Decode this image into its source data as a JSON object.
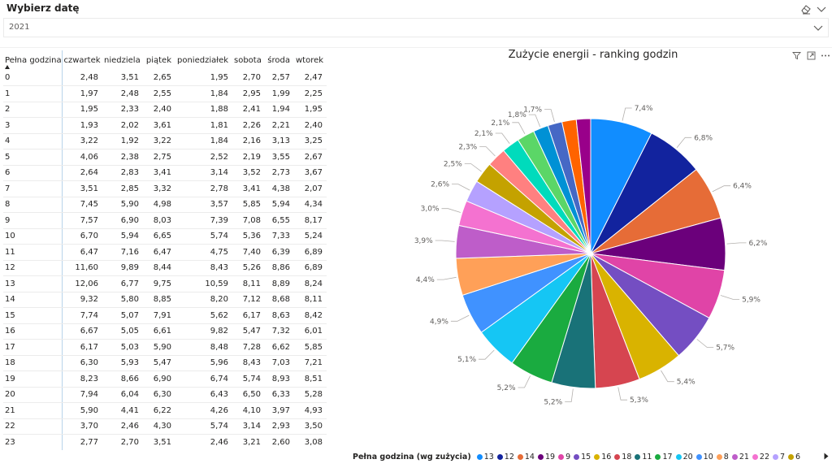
{
  "slicer": {
    "title": "Wybierz datę",
    "value": "2021",
    "clear_icon": "eraser-icon",
    "collapse_icon": "chevron-down-icon",
    "dropdown_icon": "chevron-down-icon"
  },
  "table": {
    "columns": [
      "Pełna godzina",
      "czwartek",
      "niedziela",
      "piątek",
      "poniedziałek",
      "sobota",
      "środa",
      "wtorek"
    ],
    "sort_icon": "sort-up-icon",
    "rows": [
      [
        "0",
        "2,48",
        "3,51",
        "2,65",
        "1,95",
        "2,70",
        "2,57",
        "2,47"
      ],
      [
        "1",
        "1,97",
        "2,48",
        "2,55",
        "1,84",
        "2,95",
        "1,99",
        "2,25"
      ],
      [
        "2",
        "1,95",
        "2,33",
        "2,40",
        "1,88",
        "2,41",
        "1,94",
        "1,95"
      ],
      [
        "3",
        "1,93",
        "2,02",
        "3,61",
        "1,81",
        "2,26",
        "2,21",
        "2,40"
      ],
      [
        "4",
        "3,22",
        "1,92",
        "3,22",
        "1,84",
        "2,16",
        "3,13",
        "3,25"
      ],
      [
        "5",
        "4,06",
        "2,38",
        "2,75",
        "2,52",
        "2,19",
        "3,55",
        "2,67"
      ],
      [
        "6",
        "2,64",
        "2,83",
        "3,41",
        "3,14",
        "3,52",
        "2,73",
        "3,67"
      ],
      [
        "7",
        "3,51",
        "2,85",
        "3,32",
        "2,78",
        "3,41",
        "4,38",
        "2,07"
      ],
      [
        "8",
        "7,45",
        "5,90",
        "4,98",
        "3,57",
        "5,85",
        "5,94",
        "4,34"
      ],
      [
        "9",
        "7,57",
        "6,90",
        "8,03",
        "7,39",
        "7,08",
        "6,55",
        "8,17"
      ],
      [
        "10",
        "6,70",
        "5,94",
        "6,65",
        "5,74",
        "5,36",
        "7,33",
        "5,24"
      ],
      [
        "11",
        "6,47",
        "7,16",
        "6,47",
        "4,75",
        "7,40",
        "6,39",
        "6,89"
      ],
      [
        "12",
        "11,60",
        "9,89",
        "8,44",
        "8,43",
        "5,26",
        "8,86",
        "6,89"
      ],
      [
        "13",
        "12,06",
        "6,77",
        "9,75",
        "10,59",
        "8,11",
        "8,89",
        "8,24"
      ],
      [
        "14",
        "9,32",
        "5,80",
        "8,85",
        "8,20",
        "7,12",
        "8,68",
        "8,11"
      ],
      [
        "15",
        "7,74",
        "5,07",
        "7,91",
        "5,62",
        "6,17",
        "8,63",
        "8,42"
      ],
      [
        "16",
        "6,67",
        "5,05",
        "6,61",
        "9,82",
        "5,47",
        "7,32",
        "6,01"
      ],
      [
        "17",
        "6,17",
        "5,03",
        "5,90",
        "8,48",
        "7,28",
        "6,62",
        "5,85"
      ],
      [
        "18",
        "6,30",
        "5,93",
        "5,47",
        "5,96",
        "8,43",
        "7,03",
        "7,21"
      ],
      [
        "19",
        "8,23",
        "8,66",
        "6,90",
        "6,74",
        "5,74",
        "8,93",
        "8,51"
      ],
      [
        "20",
        "7,94",
        "6,04",
        "6,30",
        "6,43",
        "6,50",
        "6,33",
        "5,28"
      ],
      [
        "21",
        "5,90",
        "4,41",
        "6,22",
        "4,26",
        "4,10",
        "3,97",
        "4,93"
      ],
      [
        "22",
        "3,70",
        "2,46",
        "4,30",
        "5,74",
        "3,14",
        "2,93",
        "3,50"
      ],
      [
        "23",
        "2,77",
        "2,70",
        "3,51",
        "2,46",
        "3,21",
        "2,60",
        "3,08"
      ]
    ]
  },
  "chart_header": {
    "title": "Zużycie energii - ranking godzin",
    "filter_icon": "filter-icon",
    "focus_icon": "focus-mode-icon",
    "more_icon": "more-options-icon"
  },
  "legend": {
    "title": "Pełna godzina (wg zużycia)",
    "next_icon": "caret-right-icon"
  },
  "chart_data": {
    "type": "pie",
    "title": "Zużycie energii - ranking godzin",
    "legend_title": "Pełna godzina (wg zużycia)",
    "legend_placement": "bottom",
    "start_angle_deg": 0,
    "direction": "clockwise",
    "slices": [
      {
        "category": "13",
        "value": 7.4,
        "label": "7,4%",
        "color": "#118DFF"
      },
      {
        "category": "12",
        "value": 6.8,
        "label": "6,8%",
        "color": "#12239E"
      },
      {
        "category": "14",
        "value": 6.4,
        "label": "6,4%",
        "color": "#E66C37"
      },
      {
        "category": "19",
        "value": 6.2,
        "label": "6,2%",
        "color": "#6B007B"
      },
      {
        "category": "9",
        "value": 5.9,
        "label": "5,9%",
        "color": "#E044A7"
      },
      {
        "category": "15",
        "value": 5.7,
        "label": "5,7%",
        "color": "#744EC2"
      },
      {
        "category": "16",
        "value": 5.4,
        "label": "5,4%",
        "color": "#D9B300"
      },
      {
        "category": "18",
        "value": 5.3,
        "label": "5,3%",
        "color": "#D64550"
      },
      {
        "category": "11",
        "value": 5.2,
        "label": "5,2%",
        "color": "#197278"
      },
      {
        "category": "17",
        "value": 5.2,
        "label": "5,2%",
        "color": "#1AAB40"
      },
      {
        "category": "20",
        "value": 5.1,
        "label": "5,1%",
        "color": "#15C6F4"
      },
      {
        "category": "10",
        "value": 4.9,
        "label": "4,9%",
        "color": "#4092FF"
      },
      {
        "category": "8",
        "value": 4.4,
        "label": "4,4%",
        "color": "#FFA058"
      },
      {
        "category": "21",
        "value": 3.9,
        "label": "3,9%",
        "color": "#BE5DC9"
      },
      {
        "category": "22",
        "value": 3.0,
        "label": "3,0%",
        "color": "#F472D0"
      },
      {
        "category": "7",
        "value": 2.6,
        "label": "2,6%",
        "color": "#B5A1FF"
      },
      {
        "category": "6",
        "value": 2.5,
        "label": "2,5%",
        "color": "#C4A200"
      },
      {
        "category": "5",
        "value": 2.3,
        "label": "2,3%",
        "color": "#FF8080"
      },
      {
        "category": "0",
        "value": 2.1,
        "label": "2,1%",
        "color": "#00DBBC"
      },
      {
        "category": "4",
        "value": 2.1,
        "label": "2,1%",
        "color": "#5BD667"
      },
      {
        "category": "1",
        "value": 1.8,
        "label": "1,8%",
        "color": "#0091D5"
      },
      {
        "category": "3",
        "value": 1.7,
        "label": "1,7%",
        "color": "#4668C5"
      },
      {
        "category": "23",
        "value": 1.7,
        "label": "",
        "color": "#FF6300"
      },
      {
        "category": "2",
        "value": 1.7,
        "label": "",
        "color": "#99008A"
      }
    ],
    "legend_visible": [
      "13",
      "12",
      "14",
      "19",
      "9",
      "15",
      "16",
      "18",
      "11",
      "17",
      "20",
      "10",
      "8",
      "21",
      "22",
      "7",
      "6"
    ]
  }
}
